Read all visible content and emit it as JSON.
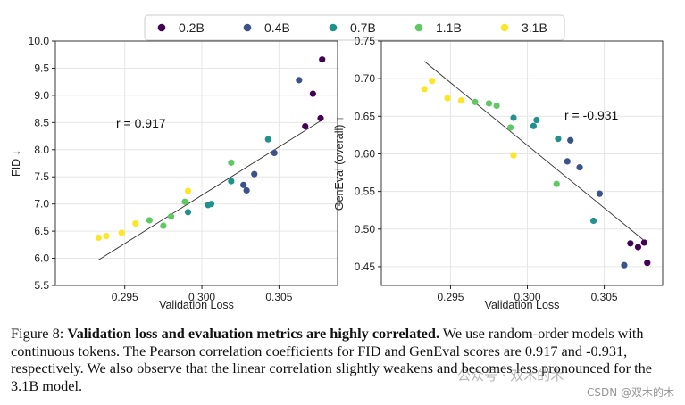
{
  "chart_data": [
    {
      "type": "scatter",
      "title": "",
      "xlabel": "Validation Loss",
      "ylabel": "FID ↓",
      "xlim": [
        0.2905,
        0.3088
      ],
      "ylim": [
        5.5,
        10.0
      ],
      "xticks": [
        "0.295",
        "0.300",
        "0.305"
      ],
      "yticks": [
        "5.5",
        "6.0",
        "6.5",
        "7.0",
        "7.5",
        "8.0",
        "8.5",
        "9.0",
        "9.5",
        "10.0"
      ],
      "grid": true,
      "annotation": "r = 0.917",
      "trendline": {
        "x": [
          0.2933,
          0.3077
        ],
        "y": [
          5.97,
          8.53
        ]
      },
      "series": [
        {
          "name": "0.2B",
          "color": "#440154",
          "points": [
            [
              0.3067,
              8.43
            ],
            [
              0.3072,
              9.03
            ],
            [
              0.3077,
              8.58
            ],
            [
              0.3078,
              9.66
            ]
          ]
        },
        {
          "name": "0.4B",
          "color": "#3b528b",
          "points": [
            [
              0.3027,
              7.35
            ],
            [
              0.3029,
              7.25
            ],
            [
              0.3034,
              7.55
            ],
            [
              0.3047,
              7.94
            ],
            [
              0.3063,
              9.28
            ]
          ]
        },
        {
          "name": "0.7B",
          "color": "#21918c",
          "points": [
            [
              0.2991,
              6.85
            ],
            [
              0.3004,
              6.98
            ],
            [
              0.3006,
              7.0
            ],
            [
              0.3019,
              7.42
            ],
            [
              0.3043,
              8.19
            ]
          ]
        },
        {
          "name": "1.1B",
          "color": "#5ec962",
          "points": [
            [
              0.2966,
              6.7
            ],
            [
              0.2975,
              6.6
            ],
            [
              0.298,
              6.77
            ],
            [
              0.2989,
              7.04
            ],
            [
              0.3019,
              7.76
            ]
          ]
        },
        {
          "name": "3.1B",
          "color": "#fde725",
          "points": [
            [
              0.2933,
              6.38
            ],
            [
              0.2938,
              6.41
            ],
            [
              0.2948,
              6.47
            ],
            [
              0.2957,
              6.64
            ],
            [
              0.2991,
              7.24
            ]
          ]
        }
      ]
    },
    {
      "type": "scatter",
      "title": "",
      "xlabel": "Validation Loss",
      "ylabel": "GenEval (overall) ↑",
      "xlim": [
        0.2905,
        0.3088
      ],
      "ylim": [
        0.425,
        0.75
      ],
      "xticks": [
        "0.295",
        "0.300",
        "0.305"
      ],
      "yticks": [
        "0.45",
        "0.50",
        "0.55",
        "0.60",
        "0.65",
        "0.70",
        "0.75"
      ],
      "grid": true,
      "annotation": "r = -0.931",
      "trendline": {
        "x": [
          0.2933,
          0.3077
        ],
        "y": [
          0.723,
          0.483
        ]
      },
      "series": [
        {
          "name": "0.2B",
          "color": "#440154",
          "points": [
            [
              0.3067,
              0.481
            ],
            [
              0.3072,
              0.476
            ],
            [
              0.3076,
              0.482
            ],
            [
              0.3078,
              0.455
            ]
          ]
        },
        {
          "name": "0.4B",
          "color": "#3b528b",
          "points": [
            [
              0.3026,
              0.59
            ],
            [
              0.3028,
              0.618
            ],
            [
              0.3034,
              0.582
            ],
            [
              0.3047,
              0.547
            ],
            [
              0.3063,
              0.452
            ]
          ]
        },
        {
          "name": "0.7B",
          "color": "#21918c",
          "points": [
            [
              0.2991,
              0.648
            ],
            [
              0.3004,
              0.637
            ],
            [
              0.3006,
              0.645
            ],
            [
              0.302,
              0.62
            ],
            [
              0.3043,
              0.511
            ]
          ]
        },
        {
          "name": "1.1B",
          "color": "#5ec962",
          "points": [
            [
              0.2966,
              0.669
            ],
            [
              0.2975,
              0.667
            ],
            [
              0.298,
              0.664
            ],
            [
              0.2989,
              0.635
            ],
            [
              0.3019,
              0.56
            ]
          ]
        },
        {
          "name": "3.1B",
          "color": "#fde725",
          "points": [
            [
              0.2933,
              0.686
            ],
            [
              0.2938,
              0.697
            ],
            [
              0.2948,
              0.674
            ],
            [
              0.2957,
              0.671
            ],
            [
              0.2991,
              0.598
            ]
          ]
        }
      ]
    }
  ],
  "legend": {
    "position": "top-center",
    "entries": [
      {
        "label": "0.2B",
        "color": "#440154"
      },
      {
        "label": "0.4B",
        "color": "#3b528b"
      },
      {
        "label": "0.7B",
        "color": "#21918c"
      },
      {
        "label": "1.1B",
        "color": "#5ec962"
      },
      {
        "label": "3.1B",
        "color": "#fde725"
      }
    ]
  },
  "caption": {
    "prefix": "Figure 8:",
    "bold": "Validation loss and evaluation metrics are highly correlated.",
    "rest": "We use random-order models with continuous tokens. The Pearson correlation coefficients for FID and GenEval scores are 0.917 and -0.931, respectively. We also observe that the linear correlation slightly weakens and becomes less pronounced for the 3.1B model."
  },
  "watermark": "公众号 · 双木的木",
  "credit": "CSDN @双木的木"
}
